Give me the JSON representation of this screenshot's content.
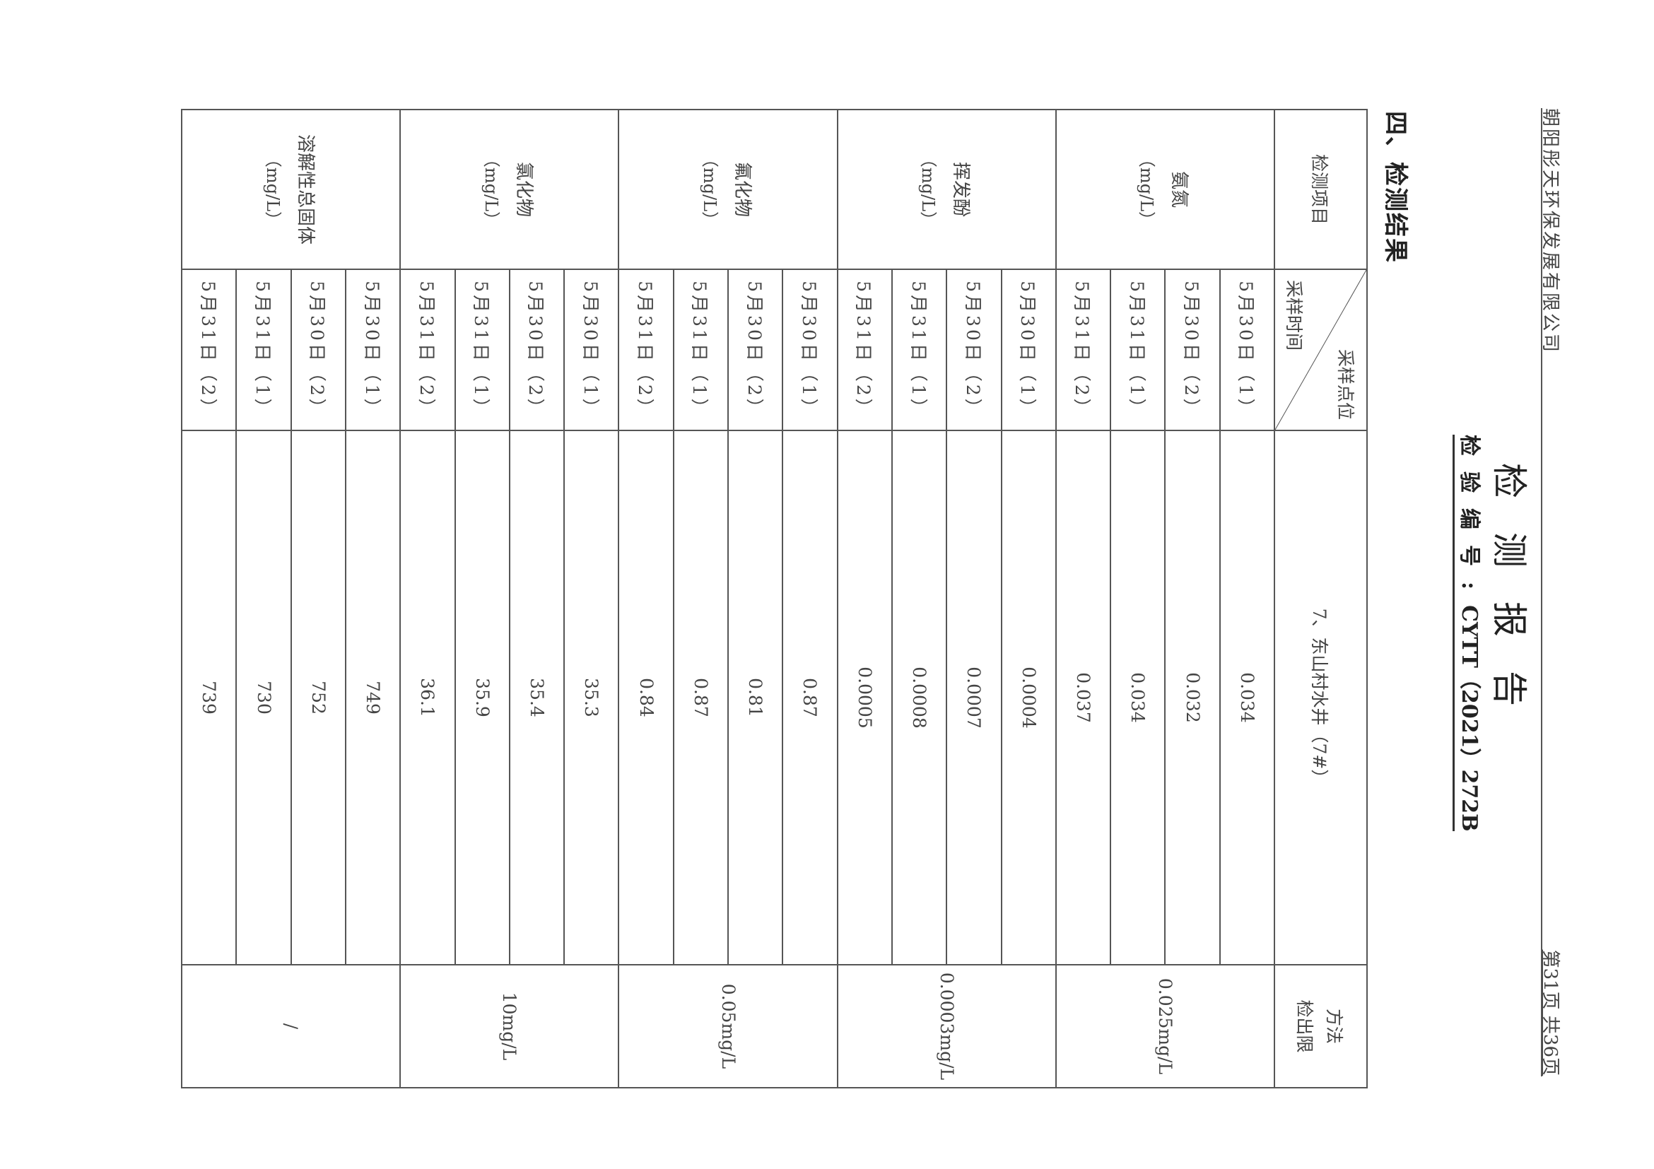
{
  "header": {
    "company": "朝阳彤天环保发展有限公司",
    "page_info": "第31页  共36页",
    "title": "检测报告",
    "code_label": "检验编号:",
    "code_value": "CYTT（2021）272B"
  },
  "section_title": "四、检测结果",
  "table": {
    "item_header": "检测项目",
    "diag_top": "采样点位",
    "diag_bottom": "采样时间",
    "site_header": "7、东山村水井（7#）",
    "limit_header_1": "方法",
    "limit_header_2": "检出限",
    "sections": [
      {
        "name": "氨氮",
        "unit": "（mg/L）",
        "limit": "0.025mg/L",
        "rows": [
          {
            "date": "5月30日（1）",
            "value": "0.034"
          },
          {
            "date": "5月30日（2）",
            "value": "0.032"
          },
          {
            "date": "5月31日（1）",
            "value": "0.034"
          },
          {
            "date": "5月31日（2）",
            "value": "0.037"
          }
        ]
      },
      {
        "name": "挥发酚",
        "unit": "（mg/L）",
        "limit": "0.0003mg/L",
        "rows": [
          {
            "date": "5月30日（1）",
            "value": "0.0004"
          },
          {
            "date": "5月30日（2）",
            "value": "0.0007"
          },
          {
            "date": "5月31日（1）",
            "value": "0.0008"
          },
          {
            "date": "5月31日（2）",
            "value": "0.0005"
          }
        ]
      },
      {
        "name": "氟化物",
        "unit": "（mg/L）",
        "limit": "0.05mg/L",
        "rows": [
          {
            "date": "5月30日（1）",
            "value": "0.87"
          },
          {
            "date": "5月30日（2）",
            "value": "0.81"
          },
          {
            "date": "5月31日（1）",
            "value": "0.87"
          },
          {
            "date": "5月31日（2）",
            "value": "0.84"
          }
        ]
      },
      {
        "name": "氯化物",
        "unit": "（mg/L）",
        "limit": "10mg/L",
        "rows": [
          {
            "date": "5月30日（1）",
            "value": "35.3"
          },
          {
            "date": "5月30日（2）",
            "value": "35.4"
          },
          {
            "date": "5月31日（1）",
            "value": "35.9"
          },
          {
            "date": "5月31日（2）",
            "value": "36.1"
          }
        ]
      },
      {
        "name": "溶解性总固体",
        "unit": "（mg/L）",
        "limit": "/",
        "rows": [
          {
            "date": "5月30日（1）",
            "value": "749"
          },
          {
            "date": "5月30日（2）",
            "value": "752"
          },
          {
            "date": "5月31日（1）",
            "value": "730"
          },
          {
            "date": "5月31日（2）",
            "value": "739"
          }
        ]
      }
    ]
  }
}
